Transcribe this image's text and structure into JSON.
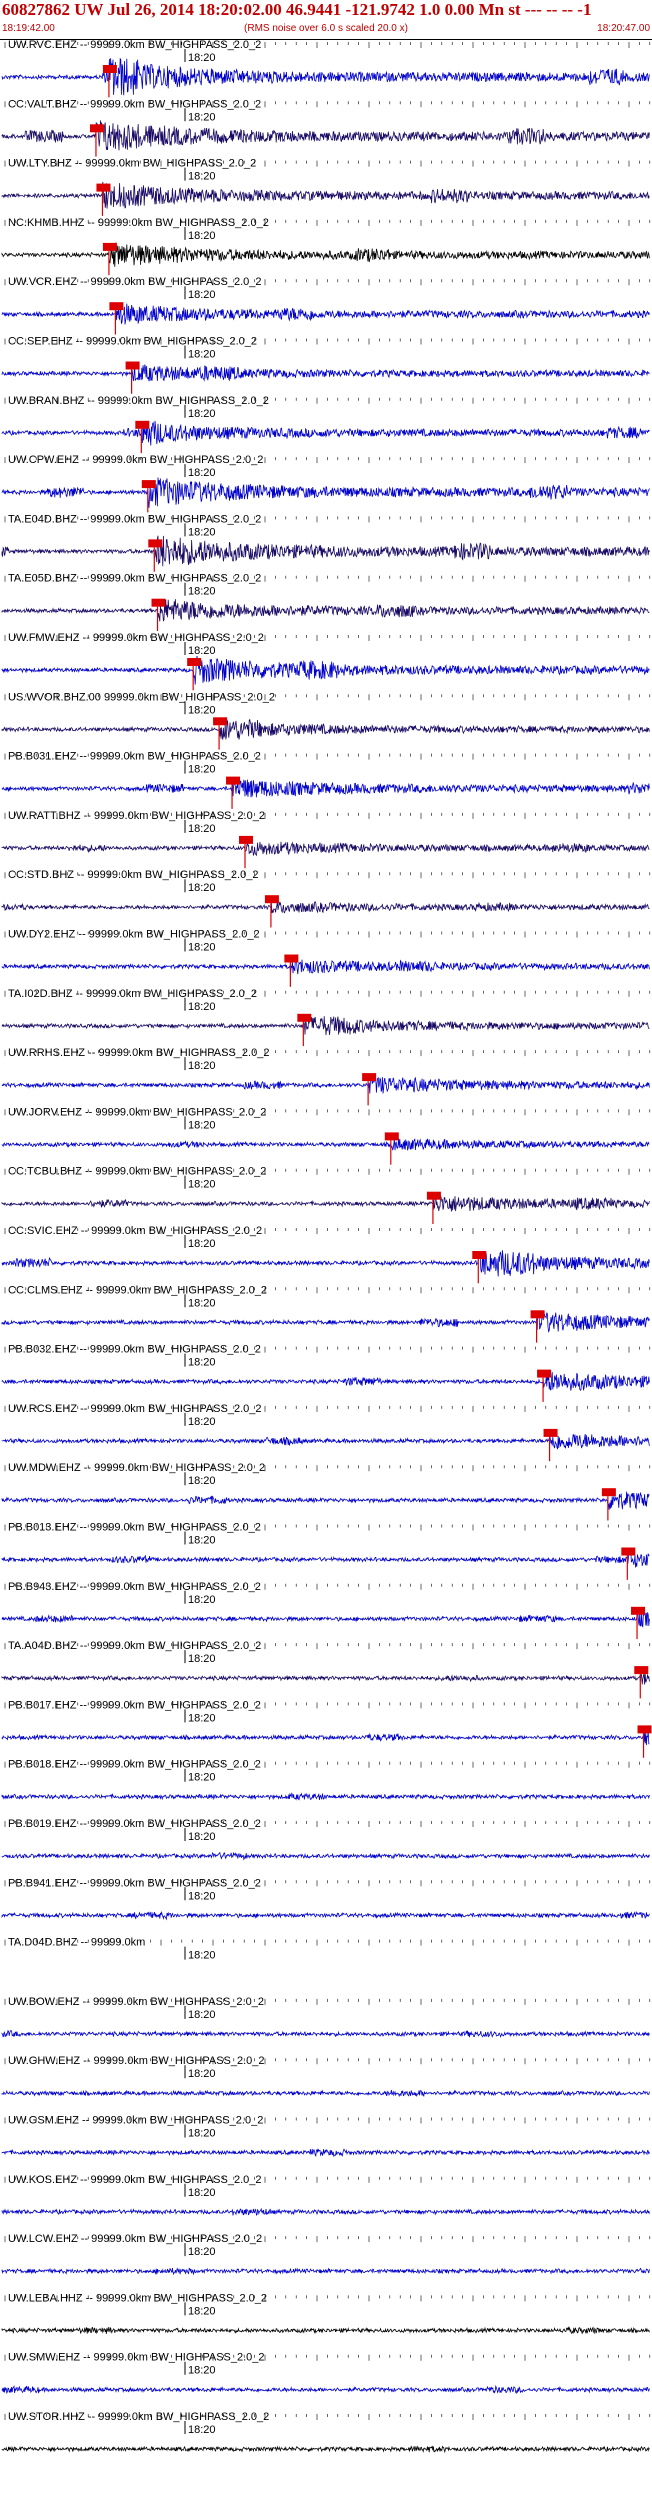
{
  "header": {
    "title": "60827862 UW Jul 26, 2014 18:20:02.00   46.9441 -121.9742  1.0 0.00 Mn st --- -- -- -1",
    "start_time": "18:19:42.00",
    "subtitle": "(RMS noise over 6.0 s scaled 20.0 x)",
    "end_time": "18:20:47.00"
  },
  "time_mark": "18:20",
  "colors": {
    "blue": "#0000cc",
    "navy": "#1a0a66",
    "black": "#000000",
    "pick": "#dd0000",
    "header_text": "#c00000"
  },
  "traces": [
    {
      "label": "UW.RVC.EHZ -- 99999.0km BW_HIGHPASS_2.0_2",
      "color": "blue",
      "pick": 0.165,
      "amp": 1.0
    },
    {
      "label": "CC.VALT.BHZ -- 99999.0km BW_HIGHPASS_2.0_2",
      "color": "navy",
      "pick": 0.145,
      "amp": 1.0
    },
    {
      "label": "UW.LTY.BHZ -- 99999.0km BW_HIGHPASS_2.0_2",
      "color": "navy",
      "pick": 0.155,
      "amp": 0.8
    },
    {
      "label": "NC.KHMB.HHZ -- 99999.0km BW_HIGHPASS_2.0_2",
      "color": "black",
      "pick": 0.165,
      "amp": 0.7
    },
    {
      "label": "UW.VCR.EHZ -- 99999.0km BW_HIGHPASS_2.0_2",
      "color": "blue",
      "pick": 0.175,
      "amp": 0.6
    },
    {
      "label": "CC.SEP.EHZ -- 99999.0km BW_HIGHPASS_2.0_2",
      "color": "blue",
      "pick": 0.2,
      "amp": 0.5
    },
    {
      "label": "UW.BRAN.BHZ -- 99999.0km BW_HIGHPASS_2.0_2",
      "color": "blue",
      "pick": 0.215,
      "amp": 0.6
    },
    {
      "label": "UW.CPW.EHZ -- 99999.0km BW_HIGHPASS_2.0_2",
      "color": "blue",
      "pick": 0.225,
      "amp": 0.9
    },
    {
      "label": "TA.E04D.BHZ -- 99999.0km BW_HIGHPASS_2.0_2",
      "color": "navy",
      "pick": 0.235,
      "amp": 1.0
    },
    {
      "label": "TA.E05D.BHZ -- 99999.0km BW_HIGHPASS_2.0_2",
      "color": "navy",
      "pick": 0.24,
      "amp": 0.7
    },
    {
      "label": "UW.FMW.EHZ -- 99999.0km BW_HIGHPASS_2.0_2",
      "color": "blue",
      "pick": 0.295,
      "amp": 0.8
    },
    {
      "label": "US.WVOR.BHZ.00 99999.0km BW_HIGHPASS_2.0_2",
      "color": "navy",
      "pick": 0.335,
      "amp": 0.5
    },
    {
      "label": "PB.B031.EHZ -- 99999.0km BW_HIGHPASS_2.0_2",
      "color": "blue",
      "pick": 0.355,
      "amp": 0.6
    },
    {
      "label": "UW.RATT.BHZ -- 99999.0km BW_HIGHPASS_2.0_2",
      "color": "navy",
      "pick": 0.375,
      "amp": 0.4
    },
    {
      "label": "CC.STD.BHZ -- 99999.0km BW_HIGHPASS_2.0_2",
      "color": "navy",
      "pick": 0.415,
      "amp": 0.3
    },
    {
      "label": "UW.DY2.EHZ -- 99999.0km BW_HIGHPASS_2.0_2",
      "color": "blue",
      "pick": 0.445,
      "amp": 0.4
    },
    {
      "label": "TA.I02D.BHZ -- 99999.0km BW_HIGHPASS_2.0_2",
      "color": "navy",
      "pick": 0.465,
      "amp": 0.5
    },
    {
      "label": "UW.RRHS.EHZ -- 99999.0km BW_HIGHPASS_2.0_2",
      "color": "blue",
      "pick": 0.565,
      "amp": 0.5
    },
    {
      "label": "UW.JORV.EHZ -- 99999.0km BW_HIGHPASS_2.0_2",
      "color": "blue",
      "pick": 0.6,
      "amp": 0.3
    },
    {
      "label": "CC.TCBU.BHZ -- 99999.0km BW_HIGHPASS_2.0_2",
      "color": "navy",
      "pick": 0.665,
      "amp": 0.5
    },
    {
      "label": "CC.SVIC.EHZ -- 99999.0km BW_HIGHPASS_2.0_2",
      "color": "blue",
      "pick": 0.735,
      "amp": 0.7
    },
    {
      "label": "CC.CLMS.EHZ -- 99999.0km BW_HIGHPASS_2.0_2",
      "color": "blue",
      "pick": 0.825,
      "amp": 0.6
    },
    {
      "label": "PB.B032.EHZ -- 99999.0km BW_HIGHPASS_2.0_2",
      "color": "blue",
      "pick": 0.835,
      "amp": 0.6
    },
    {
      "label": "UW.RCS.EHZ -- 99999.0km BW_HIGHPASS_2.0_2",
      "color": "blue",
      "pick": 0.845,
      "amp": 0.5
    },
    {
      "label": "UW.MDW.EHZ -- 99999.0km BW_HIGHPASS_2.0_2",
      "color": "blue",
      "pick": 0.935,
      "amp": 0.5
    },
    {
      "label": "PB.B013.EHZ -- 99999.0km BW_HIGHPASS_2.0_2",
      "color": "blue",
      "pick": 0.965,
      "amp": 0.4
    },
    {
      "label": "PB.B943.EHZ -- 99999.0km BW_HIGHPASS_2.0_2",
      "color": "blue",
      "pick": 0.98,
      "amp": 0.4
    },
    {
      "label": "TA.A04D.BHZ -- 99999.0km BW_HIGHPASS_2.0_2",
      "color": "navy",
      "pick": 0.985,
      "amp": 0.3
    },
    {
      "label": "PB.B017.EHZ -- 99999.0km BW_HIGHPASS_2.0_2",
      "color": "blue",
      "pick": 0.99,
      "amp": 0.4
    },
    {
      "label": "PB.B018.EHZ -- 99999.0km BW_HIGHPASS_2.0_2",
      "color": "blue",
      "pick": null,
      "amp": 0.35
    },
    {
      "label": "PB.B019.EHZ -- 99999.0km BW_HIGHPASS_2.0_2",
      "color": "blue",
      "pick": null,
      "amp": 0.35
    },
    {
      "label": "PB.B941.EHZ -- 99999.0km BW_HIGHPASS_2.0_2",
      "color": "blue",
      "pick": null,
      "amp": 0.35
    },
    {
      "label": "TA.D04D.BHZ -- 99999.0km",
      "color": "blue",
      "pick": null,
      "amp": 0.0
    },
    {
      "label": "UW.BOW.EHZ -- 99999.0km BW_HIGHPASS_2.0_2",
      "color": "blue",
      "pick": null,
      "amp": 0.3
    },
    {
      "label": "UW.GHW.EHZ -- 99999.0km BW_HIGHPASS_2.0_2",
      "color": "blue",
      "pick": null,
      "amp": 0.35
    },
    {
      "label": "UW.GSM.EHZ -- 99999.0km BW_HIGHPASS_2.0_2",
      "color": "blue",
      "pick": null,
      "amp": 0.4
    },
    {
      "label": "UW.KOS.EHZ -- 99999.0km BW_HIGHPASS_2.0_2",
      "color": "blue",
      "pick": null,
      "amp": 0.4
    },
    {
      "label": "UW.LCW.EHZ -- 99999.0km BW_HIGHPASS_2.0_2",
      "color": "blue",
      "pick": null,
      "amp": 0.3
    },
    {
      "label": "UW.LEBA.HHZ -- 99999.0km BW_HIGHPASS_2.0_2",
      "color": "black",
      "pick": null,
      "amp": 0.3
    },
    {
      "label": "UW.SMW.EHZ -- 99999.0km BW_HIGHPASS_2.0_2",
      "color": "blue",
      "pick": null,
      "amp": 0.35
    },
    {
      "label": "UW.STOR.HHZ -- 99999.0km BW_HIGHPASS_2.0_2",
      "color": "black",
      "pick": null,
      "amp": 0.3
    }
  ]
}
